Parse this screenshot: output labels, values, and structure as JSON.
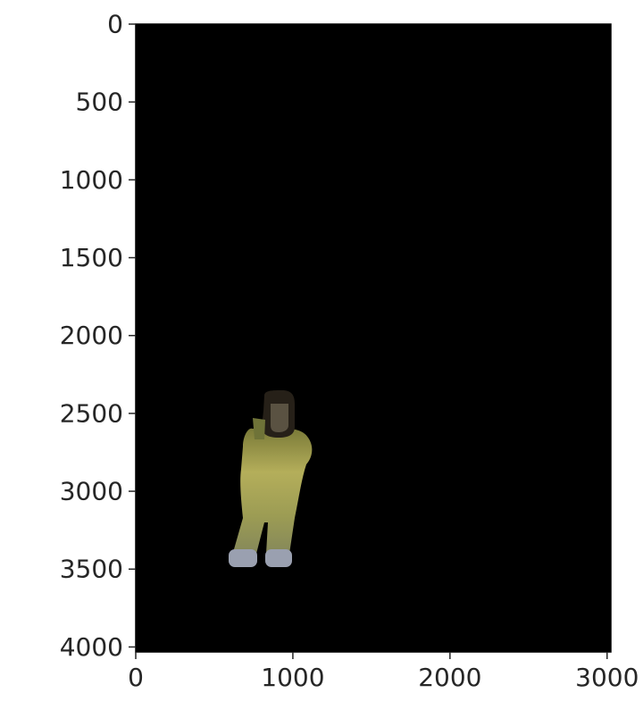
{
  "chart_data": {
    "type": "image",
    "title": "",
    "xlabel": "",
    "ylabel": "",
    "xlim": [
      0,
      3024
    ],
    "ylim": [
      4032,
      0
    ],
    "x_ticks": [
      0,
      1000,
      2000,
      3000
    ],
    "y_ticks": [
      0,
      500,
      1000,
      1500,
      2000,
      2500,
      3000,
      3500,
      4000
    ],
    "x_tick_labels": [
      "0",
      "1000",
      "2000",
      "3000"
    ],
    "y_tick_labels": [
      "0",
      "500",
      "1000",
      "1500",
      "2000",
      "2500",
      "3000",
      "3500",
      "4000"
    ],
    "grid": false,
    "background_color": "#000000",
    "subject": {
      "description_icon": "person-silhouette",
      "head": {
        "x": [
          800,
          1030
        ],
        "y": [
          2400,
          2650
        ]
      },
      "torso": {
        "x": [
          660,
          1120
        ],
        "y": [
          2600,
          3020
        ]
      },
      "left_leg": {
        "x": [
          620,
          830
        ],
        "y": [
          3000,
          3430
        ]
      },
      "right_leg": {
        "x": [
          830,
          1000
        ],
        "y": [
          3000,
          3430
        ]
      },
      "left_foot": {
        "x": [
          600,
          820
        ],
        "y": [
          3380,
          3520
        ]
      },
      "right_foot": {
        "x": [
          830,
          1000
        ],
        "y": [
          3380,
          3520
        ]
      },
      "colors": {
        "hair": "#1e1a14",
        "face": "#5a5242",
        "body": "#a8a556",
        "body_shade": "#6f7338",
        "feet": "#9aa0b0"
      }
    }
  }
}
